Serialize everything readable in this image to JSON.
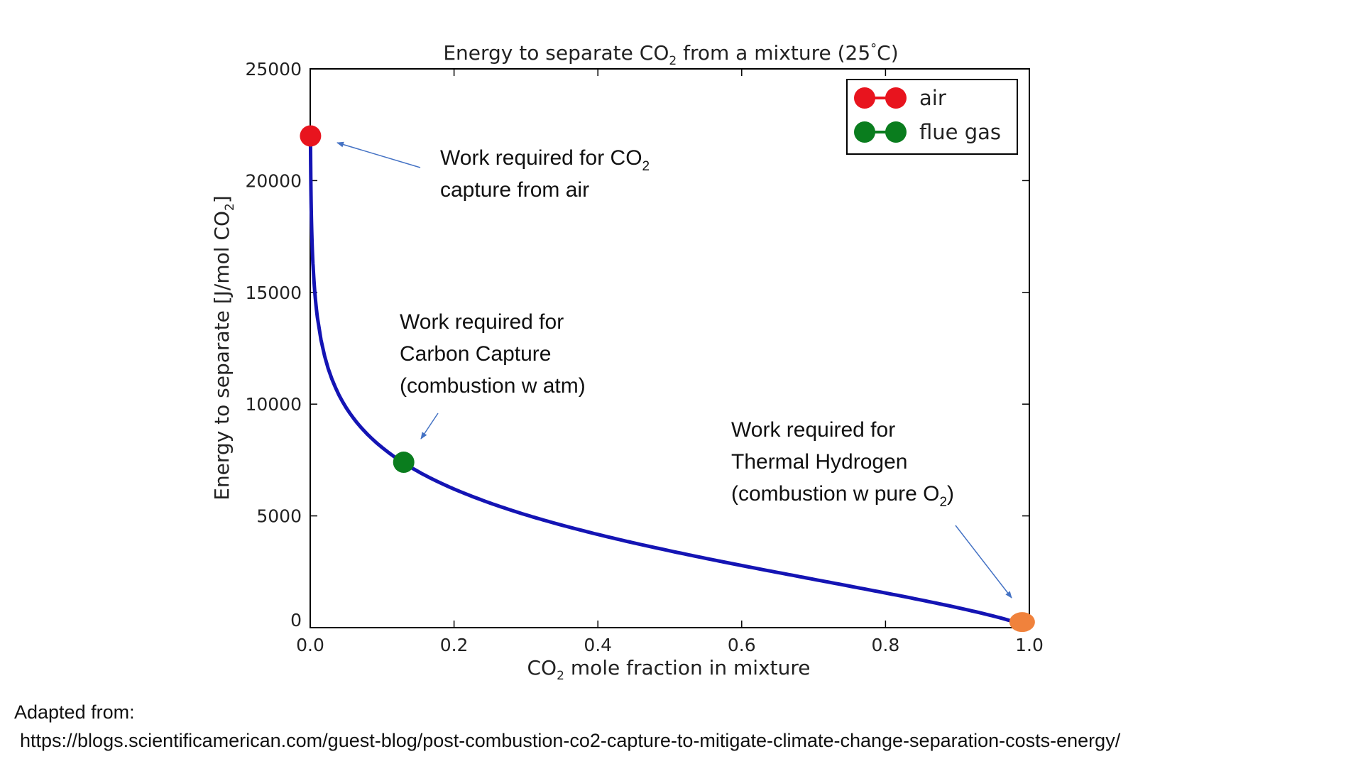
{
  "chart_data": {
    "type": "line",
    "title": {
      "prefix": "Energy to separate CO",
      "sub": "2",
      "suffix": " from a mixture (25",
      "degree": "°",
      "end": "C)"
    },
    "xlabel": {
      "prefix": "CO",
      "sub": "2",
      "suffix": " mole fraction in mixture"
    },
    "ylabel": {
      "prefix": "Energy to separate [J/mol CO",
      "sub": "2",
      "suffix": "]"
    },
    "xlim": [
      0,
      1
    ],
    "ylim": [
      0,
      25000
    ],
    "x_ticks": [
      "0.0",
      "0.2",
      "0.4",
      "0.6",
      "0.8",
      "1.0"
    ],
    "y_ticks": [
      "0",
      "5000",
      "10000",
      "15000",
      "20000",
      "25000"
    ],
    "grid": false,
    "legend_position": "top-right",
    "line_color": "#1414b4",
    "series": [
      {
        "name": "air",
        "color": "#e8141e",
        "x": 0.0004,
        "y": 22000
      },
      {
        "name": "flue gas",
        "color": "#0a7d1e",
        "x": 0.13,
        "y": 7400
      }
    ],
    "extra_point": {
      "color": "#f0823c",
      "x": 0.99,
      "y": 250
    },
    "annotations": [
      {
        "lines": [
          {
            "text": "Work required for CO",
            "sub": "2"
          },
          {
            "text": "capture from air"
          }
        ]
      },
      {
        "lines": [
          {
            "text": "Work required for"
          },
          {
            "text": "Carbon Capture"
          },
          {
            "text": "(combustion w atm)"
          }
        ]
      },
      {
        "lines": [
          {
            "text": "Work required for"
          },
          {
            "text": "Thermal Hydrogen"
          },
          {
            "text": "(combustion w pure O",
            "sub": "2",
            "after": ")"
          }
        ]
      }
    ]
  },
  "footer": {
    "line1": "Adapted from:",
    "line2": "https://blogs.scientificamerican.com/guest-blog/post-combustion-co2-capture-to-mitigate-climate-change-separation-costs-energy/"
  }
}
